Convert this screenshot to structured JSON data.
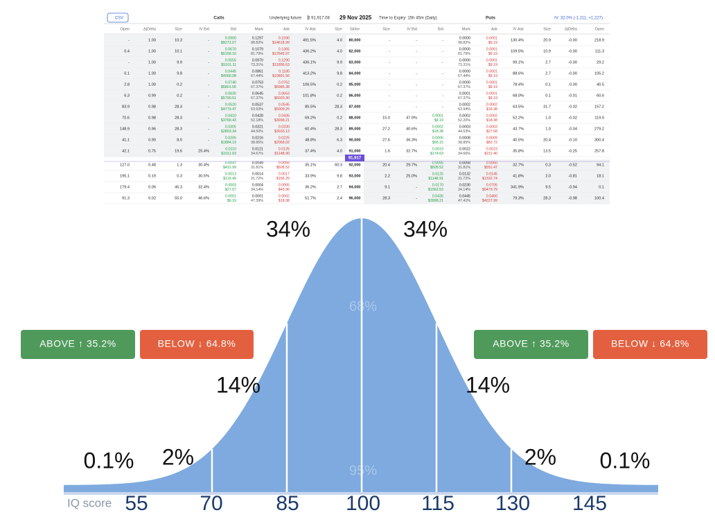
{
  "header": {
    "csv": "CSV",
    "calls": "Calls",
    "underlying_label": "Underlying future:",
    "underlying_value": "₿ 91,917.08",
    "expiry_date": "29 Nov 2025",
    "time_to_expiry": "Time to Expiry: 15h 45m (Daily)",
    "puts": "Puts",
    "iv": "IV: 32.0% (-1,211, +1,227)"
  },
  "table": {
    "columns": [
      "Open",
      "Δ|Delta",
      "Size",
      "IV Bid",
      "Bid",
      "Mark",
      "Ask",
      "IV Ask",
      "Size",
      "Strike",
      "Size",
      "IV Bid",
      "Bid",
      "Mark",
      "Ask",
      "IV Ask",
      "Size",
      "Δ|Delta",
      "Open"
    ],
    "underlying_marker": "91,917",
    "rows": [
      [
        "-",
        "1.00",
        "10.3",
        "-",
        [
          "0.0900",
          "$8272.07"
        ],
        [
          "0.1297",
          "98.82%"
        ],
        [
          "0.1590",
          "$14618.99"
        ],
        "491.5%",
        "4.0",
        "80,000",
        "-",
        "-",
        "-",
        [
          "0.0000",
          "98.82%"
        ],
        [
          "0.0001",
          "$9.19"
        ],
        "130.4%",
        "20.9",
        "-0.00",
        "218.9"
      ],
      [
        "0.4",
        "1.00",
        "10.1",
        "-",
        [
          "0.0670",
          "$6158.10"
        ],
        [
          "0.1079",
          "81.79%"
        ],
        [
          "0.1365",
          "$12549.97"
        ],
        "436.2%",
        "4.0",
        "82,000",
        "-",
        "-",
        "-",
        [
          "0.0000",
          "81.79%"
        ],
        [
          "0.0001",
          "$9.19"
        ],
        "109.5%",
        "10.9",
        "-0.00",
        "111.3"
      ],
      [
        "-",
        "1.00",
        "9.9",
        "-",
        [
          "0.0555",
          "$5101.11"
        ],
        [
          "0.0970",
          "73.31%"
        ],
        [
          "0.1290",
          "$11856.63"
        ],
        "436.1%",
        "9.9",
        "83,000",
        "-",
        "-",
        "-",
        [
          "0.0000",
          "73.31%"
        ],
        [
          "0.0001",
          "$9.19"
        ],
        "99.1%",
        "2.7",
        "-0.00",
        "29.2"
      ],
      [
        "0.1",
        "1.00",
        "9.8",
        "-",
        [
          "0.0445",
          "$4090.08"
        ],
        [
          "0.0861",
          "67.44%"
        ],
        [
          "0.1185",
          "$10891.56"
        ],
        "413.2%",
        "9.8",
        "84,000",
        "-",
        "-",
        "-",
        [
          "0.0000",
          "67.44%"
        ],
        [
          "0.0001",
          "$9.19"
        ],
        "88.6%",
        "2.7",
        "-0.00",
        "105.2"
      ],
      [
        "2.8",
        "1.00",
        "0.2",
        "-",
        [
          "0.0740",
          "$6801.56"
        ],
        [
          "0.0753",
          "67.37%"
        ],
        [
          "0.0762",
          "$6985.38"
        ],
        "106.5%",
        "0.2",
        "85,000",
        "-",
        "-",
        "-",
        [
          "0.0000",
          "67.37%"
        ],
        [
          "0.0001",
          "$9.19"
        ],
        "78.4%",
        "0.1",
        "-0.00",
        "40.5"
      ],
      [
        "6.3",
        "0.99",
        "0.2",
        "-",
        [
          "0.0630",
          "$5790.51"
        ],
        [
          "0.0645",
          "67.37%"
        ],
        [
          "0.0653",
          "$6020.30"
        ],
        "101.8%",
        "0.2",
        "86,000",
        "-",
        "-",
        "-",
        [
          "0.0001",
          "67.37%"
        ],
        [
          "0.0001",
          "$9.19"
        ],
        "68.0%",
        "0.1",
        "-0.01",
        "60.6"
      ],
      [
        "83.9",
        "0.98",
        "28.3",
        "-",
        [
          "0.0520",
          "$4779.47"
        ],
        [
          "0.0537",
          "63.93%"
        ],
        [
          "0.0545",
          "$5009.25"
        ],
        "85.5%",
        "28.3",
        "87,000",
        "-",
        "-",
        "-",
        [
          "0.0002",
          "63.94%"
        ],
        [
          "0.0002",
          "$18.38"
        ],
        "63.5%",
        "31.7",
        "-0.02",
        "157.2"
      ],
      [
        "70.6",
        "0.98",
        "28.3",
        "-",
        [
          "0.0410",
          "$3768.43"
        ],
        [
          "0.0428",
          "52.18%"
        ],
        [
          "0.0435",
          "$3998.21"
        ],
        "69.2%",
        "0.2",
        "88,000",
        "15.0",
        "47.0%",
        [
          "0.0001",
          "$9.19"
        ],
        [
          "0.0002",
          "52.20%"
        ],
        [
          "0.0002",
          "$18.38"
        ],
        "52.2%",
        "1.0",
        "-0.02",
        "119.0"
      ],
      [
        "148.9",
        "0.96",
        "28.3",
        "-",
        [
          "0.0305",
          "$2803.34"
        ],
        [
          "0.0321",
          "44.50%"
        ],
        [
          "0.0330",
          "$3033.13"
        ],
        "60.4%",
        "28.3",
        "89,000",
        "27.2",
        "40.6%",
        [
          "0.0002",
          "$18.38"
        ],
        [
          "0.0003",
          "44.53%"
        ],
        [
          "0.0003",
          "$27.58"
        ],
        "43.7%",
        "1.0",
        "-0.04",
        "279.2"
      ],
      [
        "41.1",
        "0.90",
        "8.0",
        "-",
        [
          "0.0205",
          "$1884.19"
        ],
        [
          "0.0216",
          "38.85%"
        ],
        [
          "0.0225",
          "$2068.02"
        ],
        "48.8%",
        "6.3",
        "90,000",
        "27.6",
        "36.3%",
        [
          "0.0006",
          "$55.15"
        ],
        [
          "0.0008",
          "38.85%"
        ],
        [
          "0.0009",
          "$82.72"
        ],
        "40.5%",
        "20.4",
        "-0.10",
        "300.4"
      ],
      [
        "42.1",
        "0.75",
        "19.6",
        "25.4%",
        [
          "0.0110",
          "$1011.03"
        ],
        [
          "0.0121",
          "34.67%"
        ],
        [
          "0.0125",
          "$1148.90"
        ],
        "37.4%",
        "4.0",
        "91,000",
        "1.6",
        "32.7%",
        [
          "0.0019",
          "$174.63"
        ],
        [
          "0.0022",
          "34.66%"
        ],
        [
          "0.0023",
          "$211.40"
        ],
        "35.8%",
        "13.5",
        "-0.25",
        "257.8"
      ],
      [
        "127.0",
        "0.48",
        "1.3",
        "30.4%",
        [
          "0.0047",
          "$431.99"
        ],
        [
          "0.0049",
          "31.81%"
        ],
        [
          "0.0055",
          "$505.52"
        ],
        "35.1%",
        "60.3",
        "92,000",
        "20.4",
        "29.7%",
        [
          "0.0055",
          "$505.52"
        ],
        [
          "0.0058",
          "31.81%"
        ],
        [
          "0.0060",
          "$551.47"
        ],
        "32.7%",
        "0.3",
        "-0.52",
        "94.1"
      ],
      [
        "195.1",
        "0.19",
        "0.3",
        "30.5%",
        [
          "0.0013",
          "$119.49"
        ],
        [
          "0.0014",
          "31.72%"
        ],
        [
          "0.0017",
          "$156.25"
        ],
        "33.9%",
        "9.8",
        "93,000",
        "2.2",
        "25.0%",
        [
          "0.0125",
          "$1148.91"
        ],
        [
          "0.0132",
          "31.72%"
        ],
        [
          "0.0145",
          "$1332.74"
        ],
        "41.8%",
        "2.0",
        "-0.81",
        "18.1"
      ],
      [
        "179.4",
        "0.06",
        "45.3",
        "32.4%",
        [
          "0.0003",
          "$27.57"
        ],
        [
          "0.0004",
          "34.14%"
        ],
        [
          "0.0005",
          "$45.96"
        ],
        "36.2%",
        "2.7",
        "94,000",
        "9.1",
        "-",
        [
          "0.0170",
          "$1562.53"
        ],
        [
          "0.0230",
          "34.14%"
        ],
        [
          "0.0705",
          "$6479.79"
        ],
        "341.9%",
        "9.5",
        "-0.94",
        "0.1"
      ],
      [
        "91.3",
        "0.02",
        "55.0",
        "46.6%",
        [
          "0.0001",
          "$9.19"
        ],
        [
          "0.0001",
          "47.39%"
        ],
        [
          "0.0002",
          "$18.38"
        ],
        "51.7%",
        "2.4",
        "96,000",
        "28.3",
        "-",
        [
          "0.0435",
          "$3998.21"
        ],
        [
          "0.0445",
          "47.41%"
        ],
        [
          "0.0460",
          "$4227.99"
        ],
        "79.3%",
        "28.3",
        "-0.98",
        "100.4"
      ]
    ]
  },
  "buttons": [
    "ABOVE ↑ 35.2%",
    "BELOW ↓ 64.8%",
    "ABOVE ↑ 35.2%",
    "BELOW ↓ 64.8%"
  ],
  "bell_curve": {
    "axis_label": "IQ score",
    "ticks": [
      "55",
      "70",
      "85",
      "100",
      "115",
      "130",
      "145"
    ],
    "labels": [
      "34%",
      "34%",
      "68%",
      "14%",
      "14%",
      "2%",
      "2%",
      "0.1%",
      "0.1%",
      "95%"
    ]
  }
}
